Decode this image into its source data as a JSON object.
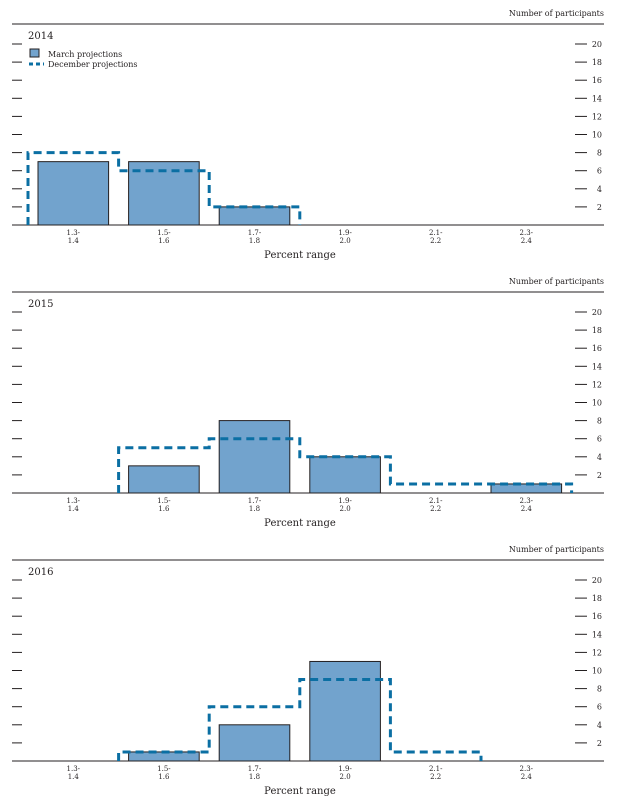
{
  "chart_data": [
    {
      "type": "bar",
      "title": "2014",
      "ylabel": "Number of participants",
      "xlabel": "Percent range",
      "categories": [
        "1.3-\n1.4",
        "1.5-\n1.6",
        "1.7-\n1.8",
        "1.9-\n2.0",
        "2.1-\n2.2",
        "2.3-\n2.4"
      ],
      "ylim": [
        0,
        20
      ],
      "yticks": [
        2,
        4,
        6,
        8,
        10,
        12,
        14,
        16,
        18,
        20
      ],
      "series": [
        {
          "name": "March projections",
          "style": "bar",
          "color": "#72a3cd",
          "values": [
            7,
            7,
            2,
            0,
            0,
            0
          ]
        },
        {
          "name": "December projections",
          "style": "dashed-step",
          "color": "#0b6fa3",
          "values": [
            8,
            6,
            2,
            0,
            0,
            0
          ]
        }
      ],
      "legend": "top-left"
    },
    {
      "type": "bar",
      "title": "2015",
      "ylabel": "Number of participants",
      "xlabel": "Percent range",
      "categories": [
        "1.3-\n1.4",
        "1.5-\n1.6",
        "1.7-\n1.8",
        "1.9-\n2.0",
        "2.1-\n2.2",
        "2.3-\n2.4"
      ],
      "ylim": [
        0,
        20
      ],
      "yticks": [
        2,
        4,
        6,
        8,
        10,
        12,
        14,
        16,
        18,
        20
      ],
      "series": [
        {
          "name": "March projections",
          "style": "bar",
          "color": "#72a3cd",
          "values": [
            0,
            3,
            8,
            4,
            0,
            1
          ]
        },
        {
          "name": "December projections",
          "style": "dashed-step",
          "color": "#0b6fa3",
          "values": [
            0,
            5,
            6,
            4,
            1,
            1
          ]
        }
      ]
    },
    {
      "type": "bar",
      "title": "2016",
      "ylabel": "Number of participants",
      "xlabel": "Percent range",
      "categories": [
        "1.3-\n1.4",
        "1.5-\n1.6",
        "1.7-\n1.8",
        "1.9-\n2.0",
        "2.1-\n2.2",
        "2.3-\n2.4"
      ],
      "ylim": [
        0,
        20
      ],
      "yticks": [
        2,
        4,
        6,
        8,
        10,
        12,
        14,
        16,
        18,
        20
      ],
      "series": [
        {
          "name": "March projections",
          "style": "bar",
          "color": "#72a3cd",
          "values": [
            0,
            1,
            4,
            11,
            0,
            0
          ]
        },
        {
          "name": "December projections",
          "style": "dashed-step",
          "color": "#0b6fa3",
          "values": [
            0,
            1,
            6,
            9,
            1,
            0
          ]
        }
      ]
    }
  ]
}
